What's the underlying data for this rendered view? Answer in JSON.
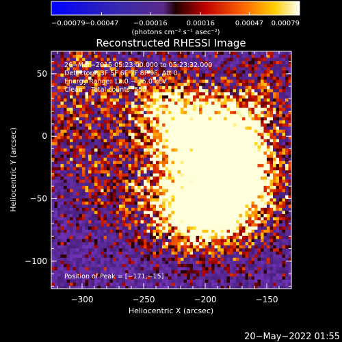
{
  "chart_data": {
    "type": "heatmap",
    "title": "Reconstructed RHESSI Image",
    "xlabel": "Heliocentric X (arcsec)",
    "ylabel": "Heliocentric Y (arcsec)",
    "xlim": [
      -325,
      -130
    ],
    "ylim": [
      -122,
      68
    ],
    "xticks": [
      -300,
      -250,
      -200,
      -150
    ],
    "xtick_labels": [
      "−300",
      "−250",
      "−200",
      "−150"
    ],
    "yticks": [
      50,
      0,
      -50,
      -100
    ],
    "ytick_labels": [
      "50",
      "0",
      "−50",
      "−100"
    ],
    "colorbar": {
      "range": [
        -0.00079,
        0.00079
      ],
      "ticks": [
        -0.00079,
        -0.00047,
        -0.00016,
        0.00016,
        0.00047,
        0.00079
      ],
      "tick_labels": [
        "−0.00079",
        "−0.00047",
        "−0.00016",
        "0.00016",
        "0.00047",
        "0.00079"
      ],
      "unit_label": "(photons cm⁻² s⁻¹ asec⁻²)"
    },
    "info_lines": [
      "26−Mar−2015 05:23:00.000 to 05:23:32.000",
      "Detectors: 3F 5F 6F 7F 8F 9F, Att 0",
      "Energy Range: 12.0 − 25.0 keV",
      "Clean    Total counts: 550."
    ],
    "peak_label": "Position of Peak = [−171,−15]",
    "peak": [
      -171,
      -15
    ],
    "emission_sources": [
      {
        "x": -190,
        "y": 0,
        "strength": 0.75
      },
      {
        "x": -175,
        "y": -15,
        "strength": 1.0
      },
      {
        "x": -215,
        "y": 15,
        "strength": 0.7
      },
      {
        "x": -230,
        "y": -10,
        "strength": 0.65
      },
      {
        "x": -205,
        "y": -55,
        "strength": 0.85
      },
      {
        "x": -225,
        "y": -60,
        "strength": 0.75
      },
      {
        "x": -160,
        "y": -45,
        "strength": 0.65
      },
      {
        "x": -185,
        "y": -65,
        "strength": 0.7
      },
      {
        "x": -155,
        "y": 30,
        "strength": 0.5
      },
      {
        "x": -300,
        "y": 50,
        "strength": 0.55
      },
      {
        "x": -310,
        "y": 0,
        "strength": 0.4
      },
      {
        "x": -280,
        "y": -45,
        "strength": 0.45
      },
      {
        "x": -250,
        "y": 30,
        "strength": 0.5
      }
    ]
  },
  "footer_date": "20−May−2022 01:55"
}
